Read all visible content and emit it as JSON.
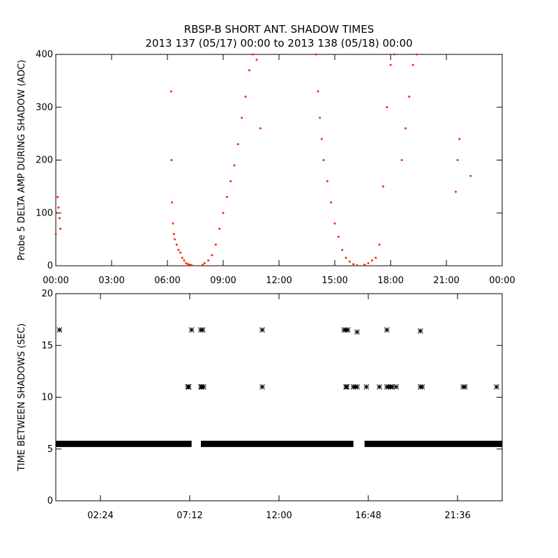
{
  "title": "RBSP-B SHORT ANT. SHADOW TIMES",
  "subtitle": "2013 137 (05/17) 00:00 to 2013 138 (05/18) 00:00",
  "colors": {
    "top_points": "#ff2200",
    "bottom_points": "#000000",
    "axes": "#000000"
  },
  "chart_data": [
    {
      "type": "scatter",
      "ylabel": "Probe 5 DELTA AMP DURING SHADOW (ADC)",
      "xlabel": "",
      "x_unit": "hours",
      "xlim": [
        0,
        24
      ],
      "ylim": [
        0,
        400
      ],
      "x_tick_labels": [
        {
          "at": 0,
          "label": "00:00"
        },
        {
          "at": 3,
          "label": "03:00"
        },
        {
          "at": 6,
          "label": "06:00"
        },
        {
          "at": 9,
          "label": "09:00"
        },
        {
          "at": 12,
          "label": "12:00"
        },
        {
          "at": 15,
          "label": "15:00"
        },
        {
          "at": 18,
          "label": "18:00"
        },
        {
          "at": 21,
          "label": "21:00"
        },
        {
          "at": 24,
          "label": "00:00"
        }
      ],
      "y_ticks": [
        0,
        100,
        200,
        300,
        400
      ],
      "series": [
        {
          "color": "#ff2200",
          "x": [
            0.0,
            0.05,
            0.1,
            0.15,
            0.2,
            0.25,
            6.2,
            6.22,
            6.25,
            6.3,
            6.35,
            6.4,
            6.5,
            6.6,
            6.7,
            6.8,
            6.9,
            7.0,
            7.1,
            7.2,
            7.3,
            7.9,
            8.0,
            8.2,
            8.4,
            8.6,
            8.8,
            9.0,
            9.2,
            9.4,
            9.6,
            9.8,
            10.0,
            10.2,
            10.4,
            10.6,
            10.8,
            11.0,
            14.0,
            14.1,
            14.2,
            14.3,
            14.4,
            14.6,
            14.8,
            15.0,
            15.2,
            15.4,
            15.6,
            15.8,
            16.0,
            16.2,
            16.6,
            16.8,
            17.0,
            17.2,
            17.4,
            17.6,
            17.8,
            18.0,
            18.2,
            18.6,
            18.8,
            19.0,
            19.2,
            19.4,
            21.5,
            21.6,
            21.7,
            22.3
          ],
          "y": [
            60,
            100,
            130,
            110,
            90,
            70,
            330,
            200,
            120,
            80,
            60,
            50,
            40,
            30,
            25,
            15,
            10,
            5,
            3,
            2,
            1,
            2,
            5,
            10,
            20,
            40,
            70,
            100,
            130,
            160,
            190,
            230,
            280,
            320,
            370,
            400,
            390,
            260,
            400,
            330,
            280,
            240,
            200,
            160,
            120,
            80,
            55,
            30,
            15,
            8,
            3,
            1,
            2,
            5,
            10,
            15,
            40,
            150,
            300,
            380,
            400,
            200,
            260,
            320,
            380,
            400,
            140,
            200,
            240,
            170
          ]
        }
      ]
    },
    {
      "type": "scatter",
      "ylabel": "TIME BETWEEN SHADOWS (SEC)",
      "xlabel": "",
      "x_unit": "hours",
      "xlim": [
        0,
        24
      ],
      "ylim": [
        0,
        20
      ],
      "x_tick_labels": [
        {
          "at": 2.4,
          "label": "02:24"
        },
        {
          "at": 7.2,
          "label": "07:12"
        },
        {
          "at": 12.0,
          "label": "12:00"
        },
        {
          "at": 16.8,
          "label": "16:48"
        },
        {
          "at": 21.6,
          "label": "21:36"
        }
      ],
      "y_ticks": [
        0,
        5,
        10,
        15,
        20
      ],
      "marker": "asterisk",
      "baseline": {
        "y": 5.5,
        "gaps": [
          [
            7.3,
            7.8
          ],
          [
            16.0,
            16.6
          ]
        ]
      },
      "series": [
        {
          "color": "#000000",
          "x": [
            0.2,
            7.3,
            7.8,
            7.9,
            11.1,
            15.5,
            15.6,
            15.7,
            16.2,
            17.8,
            19.6
          ],
          "y": [
            16.5,
            16.5,
            16.5,
            16.5,
            16.5,
            16.5,
            16.5,
            16.5,
            16.3,
            16.5,
            16.4
          ]
        },
        {
          "color": "#000000",
          "x": [
            7.1,
            7.15,
            7.8,
            7.85,
            7.95,
            11.1,
            15.6,
            15.65,
            16.0,
            16.1,
            16.2,
            16.7,
            17.4,
            17.8,
            17.9,
            18.0,
            18.1,
            18.3,
            19.6,
            19.7,
            21.9,
            22.0,
            23.7
          ],
          "y": [
            11,
            11,
            11,
            11,
            11,
            11,
            11,
            11,
            11,
            11,
            11,
            11,
            11,
            11,
            11,
            11,
            11,
            11,
            11,
            11,
            11,
            11,
            11
          ]
        }
      ]
    }
  ]
}
